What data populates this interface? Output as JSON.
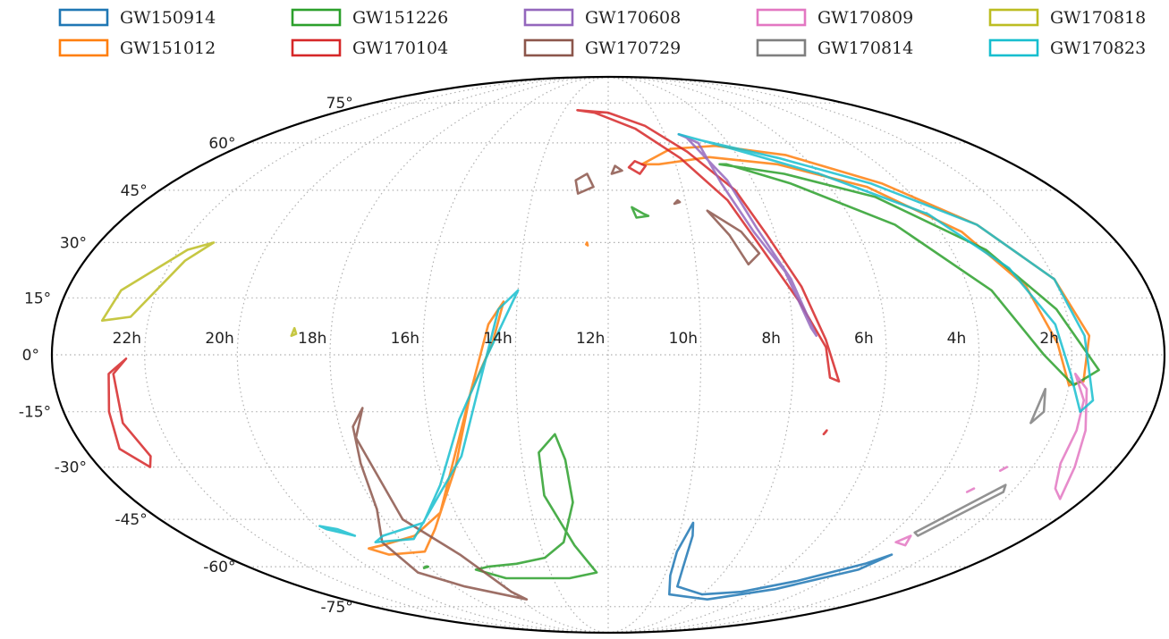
{
  "chart_data": {
    "type": "sky-map",
    "projection": "mollweide",
    "title": "",
    "ra_ticks": [
      "22h",
      "20h",
      "18h",
      "16h",
      "14h",
      "12h",
      "10h",
      "8h",
      "6h",
      "4h",
      "2h"
    ],
    "dec_ticks": [
      "-75°",
      "-60°",
      "-45°",
      "-30°",
      "-15°",
      "0°",
      "15°",
      "30°",
      "45°",
      "60°",
      "75°"
    ],
    "grid": true,
    "legend": {
      "placement": "top",
      "columns": 5,
      "entries": [
        {
          "name": "GW150914",
          "color": "#1f77b4"
        },
        {
          "name": "GW151012",
          "color": "#ff7f0e"
        },
        {
          "name": "GW151226",
          "color": "#2ca02c"
        },
        {
          "name": "GW170104",
          "color": "#d62728"
        },
        {
          "name": "GW170608",
          "color": "#9467bd"
        },
        {
          "name": "GW170729",
          "color": "#8c564b"
        },
        {
          "name": "GW170809",
          "color": "#e377c2"
        },
        {
          "name": "GW170814",
          "color": "#7f7f7f"
        },
        {
          "name": "GW170818",
          "color": "#bcbd22"
        },
        {
          "name": "GW170823",
          "color": "#17becf"
        }
      ]
    },
    "series": [
      {
        "name": "GW150914",
        "color": "#1f77b4",
        "regions": [
          [
            [
              9.7,
              -46
            ],
            [
              9.9,
              -55
            ],
            [
              9.8,
              -63
            ],
            [
              9.4,
              -70
            ],
            [
              7.5,
              -72
            ],
            [
              5.3,
              -68
            ],
            [
              3.5,
              -61
            ],
            [
              3.2,
              -56
            ],
            [
              3.6,
              -59
            ],
            [
              5.0,
              -65
            ],
            [
              6.5,
              -69
            ],
            [
              8.0,
              -70
            ],
            [
              9.3,
              -67
            ],
            [
              9.5,
              -60
            ],
            [
              9.6,
              -50
            ],
            [
              9.7,
              -46
            ]
          ]
        ]
      },
      {
        "name": "GW151012",
        "color": "#ff7f0e",
        "regions": [
          [
            [
              11.0,
              53
            ],
            [
              10.0,
              58
            ],
            [
              8.5,
              59
            ],
            [
              6.5,
              56
            ],
            [
              4.5,
              47
            ],
            [
              3.0,
              35
            ],
            [
              2.0,
              20
            ],
            [
              1.6,
              5
            ],
            [
              1.7,
              -7
            ],
            [
              2.0,
              -8
            ],
            [
              2.3,
              3
            ],
            [
              2.7,
              18
            ],
            [
              3.5,
              33
            ],
            [
              5.0,
              46
            ],
            [
              7.0,
              53
            ],
            [
              8.9,
              55.3
            ],
            [
              10.5,
              53
            ],
            [
              11.0,
              53
            ]
          ],
          [
            [
              14.3,
              14
            ],
            [
              14.6,
              8
            ],
            [
              15.0,
              -10
            ],
            [
              15.6,
              -30
            ],
            [
              16.8,
              -48
            ],
            [
              17.6,
              -55
            ],
            [
              18.8,
              -56
            ],
            [
              19.2,
              -54
            ],
            [
              18.7,
              -53
            ],
            [
              17.5,
              -50
            ],
            [
              16.4,
              -43
            ],
            [
              15.6,
              -28
            ],
            [
              15.0,
              -10
            ],
            [
              14.5,
              3
            ],
            [
              14.3,
              14
            ]
          ],
          [
            [
              12.5,
              30
            ],
            [
              12.52,
              29.5
            ],
            [
              12.48,
              29.2
            ],
            [
              12.5,
              30
            ]
          ]
        ]
      },
      {
        "name": "GW151226",
        "color": "#2ca02c",
        "regions": [
          [
            [
              13.2,
              -21
            ],
            [
              13.6,
              -26
            ],
            [
              13.6,
              -38
            ],
            [
              13.0,
              -53
            ],
            [
              12.4,
              -62
            ],
            [
              13.4,
              -64
            ],
            [
              14.5,
              -64
            ],
            [
              15.7,
              -64
            ],
            [
              16.5,
              -61
            ],
            [
              16.0,
              -60
            ],
            [
              15.0,
              -59
            ],
            [
              14.0,
              -57
            ],
            [
              13.3,
              -52
            ],
            [
              12.9,
              -40
            ],
            [
              13.0,
              -28
            ],
            [
              13.2,
              -21
            ]
          ],
          [
            [
              8.7,
              53
            ],
            [
              7.0,
              50
            ],
            [
              5.0,
              43
            ],
            [
              3.2,
              28
            ],
            [
              2.2,
              12
            ],
            [
              1.4,
              -4
            ],
            [
              1.9,
              -8
            ],
            [
              2.6,
              0
            ],
            [
              3.5,
              17
            ],
            [
              5.0,
              35
            ],
            [
              7.0,
              47
            ],
            [
              8.5,
              53
            ],
            [
              8.7,
              53
            ]
          ],
          [
            [
              11.1,
              38
            ],
            [
              11.4,
              40
            ],
            [
              11.3,
              37
            ],
            [
              11.0,
              37.5
            ],
            [
              11.1,
              38
            ]
          ],
          [
            [
              18.0,
              -60
            ],
            [
              18.2,
              -60.5
            ],
            [
              18.1,
              -60
            ],
            [
              18.0,
              -60
            ]
          ]
        ]
      },
      {
        "name": "GW170104",
        "color": "#d62728",
        "regions": [
          [
            [
              13.4,
              72
            ],
            [
              12.0,
              71
            ],
            [
              10.6,
              66
            ],
            [
              9.5,
              57
            ],
            [
              8.6,
              45
            ],
            [
              8.2,
              32
            ],
            [
              7.7,
              18
            ],
            [
              7.3,
              4
            ],
            [
              7.0,
              -7
            ],
            [
              7.2,
              -6
            ],
            [
              7.3,
              2
            ],
            [
              7.8,
              14
            ],
            [
              8.4,
              28
            ],
            [
              8.9,
              42
            ],
            [
              9.8,
              55
            ],
            [
              11.0,
              65
            ],
            [
              12.6,
              71
            ],
            [
              13.4,
              72
            ]
          ],
          [
            [
              11.2,
              54
            ],
            [
              11.4,
              52
            ],
            [
              11.1,
              50
            ],
            [
              10.9,
              52.5
            ],
            [
              11.2,
              54
            ]
          ],
          [
            [
              22.4,
              -1
            ],
            [
              22.7,
              -5
            ],
            [
              22.8,
              -18
            ],
            [
              22.6,
              -27
            ],
            [
              22.8,
              -30
            ],
            [
              23.2,
              -25
            ],
            [
              23.0,
              -15
            ],
            [
              22.8,
              -5
            ],
            [
              22.4,
              -1
            ]
          ],
          [
            [
              7.1,
              -20
            ],
            [
              7.15,
              -21
            ],
            [
              7.12,
              -20.5
            ],
            [
              7.1,
              -20
            ]
          ]
        ]
      },
      {
        "name": "GW170608",
        "color": "#9467bd",
        "regions": [
          [
            [
              9.5,
              63
            ],
            [
              9.0,
              60
            ],
            [
              8.9,
              47
            ],
            [
              8.5,
              33
            ],
            [
              8.0,
              22
            ],
            [
              7.6,
              7
            ],
            [
              7.5,
              5
            ],
            [
              7.9,
              20
            ],
            [
              8.4,
              34
            ],
            [
              8.7,
              48
            ],
            [
              9.3,
              62
            ],
            [
              9.5,
              63
            ]
          ]
        ]
      },
      {
        "name": "GW170729",
        "color": "#8c564b",
        "regions": [
          [
            [
              17.4,
              -14
            ],
            [
              17.7,
              -22
            ],
            [
              17.5,
              -45
            ],
            [
              16.6,
              -56
            ],
            [
              16.0,
              -69
            ],
            [
              15.7,
              -72
            ],
            [
              17.6,
              -67
            ],
            [
              18.6,
              -62
            ],
            [
              18.6,
              -52
            ],
            [
              18.0,
              -42
            ],
            [
              17.8,
              -29
            ],
            [
              17.7,
              -19
            ],
            [
              17.4,
              -14
            ]
          ],
          [
            [
              12.6,
              50
            ],
            [
              12.9,
              48
            ],
            [
              12.8,
              44
            ],
            [
              12.4,
              46
            ],
            [
              12.6,
              50
            ]
          ],
          [
            [
              9.5,
              39
            ],
            [
              9.1,
              32
            ],
            [
              8.8,
              24
            ],
            [
              8.5,
              27
            ],
            [
              8.8,
              33
            ],
            [
              9.5,
              39
            ]
          ],
          [
            [
              11.6,
              51
            ],
            [
              11.8,
              52.5
            ],
            [
              11.9,
              50
            ],
            [
              11.6,
              51
            ]
          ],
          [
            [
              10.2,
              42
            ],
            [
              10.3,
              41
            ],
            [
              10.15,
              41.5
            ],
            [
              10.2,
              42
            ]
          ]
        ]
      },
      {
        "name": "GW170809",
        "color": "#e377c2",
        "regions": [
          [
            [
              1.9,
              -5
            ],
            [
              1.6,
              -9
            ],
            [
              1.3,
              -20
            ],
            [
              1.0,
              -30
            ],
            [
              0.6,
              -39
            ],
            [
              1.0,
              -36
            ],
            [
              1.4,
              -29
            ],
            [
              1.5,
              -20
            ],
            [
              1.6,
              -12
            ],
            [
              1.9,
              -5
            ]
          ],
          [
            [
              3.4,
              -50
            ],
            [
              3.6,
              -52
            ],
            [
              3.2,
              -53
            ],
            [
              3.4,
              -50
            ]
          ],
          [
            [
              2.6,
              -30
            ],
            [
              2.7,
              -31
            ],
            [
              2.6,
              -30
            ]
          ],
          [
            [
              3.0,
              -36
            ],
            [
              3.1,
              -37
            ],
            [
              3.0,
              -36
            ]
          ]
        ]
      },
      {
        "name": "GW170814",
        "color": "#7f7f7f",
        "regions": [
          [
            [
              2.3,
              -35
            ],
            [
              3.4,
              -49
            ],
            [
              3.2,
              -50
            ],
            [
              2.2,
              -37
            ],
            [
              2.3,
              -35
            ]
          ],
          [
            [
              2.5,
              -9
            ],
            [
              2.6,
              -18
            ],
            [
              2.4,
              -15
            ],
            [
              2.5,
              -9
            ]
          ]
        ]
      },
      {
        "name": "GW170818",
        "color": "#bcbd22",
        "regions": [
          [
            [
              21.3,
              30
            ],
            [
              21.7,
              25
            ],
            [
              22.4,
              10
            ],
            [
              23.0,
              9
            ],
            [
              22.8,
              17
            ],
            [
              21.8,
              28
            ],
            [
              21.3,
              30
            ]
          ],
          [
            [
              18.8,
              7
            ],
            [
              18.85,
              5
            ],
            [
              18.75,
              5.5
            ],
            [
              18.8,
              7
            ]
          ]
        ]
      },
      {
        "name": "GW170823",
        "color": "#17becf",
        "regions": [
          [
            [
              9.5,
              63
            ],
            [
              8.9,
              61
            ],
            [
              6.8,
              55
            ],
            [
              4.8,
              47
            ],
            [
              3.0,
              35
            ],
            [
              2.0,
              20
            ],
            [
              1.7,
              5
            ],
            [
              1.4,
              -12
            ],
            [
              1.6,
              -15
            ],
            [
              2.0,
              -5
            ],
            [
              2.3,
              8
            ],
            [
              2.9,
              23
            ],
            [
              4.0,
              38
            ],
            [
              6.0,
              50
            ],
            [
              8.0,
              58
            ],
            [
              9.5,
              63
            ]
          ],
          [
            [
              14.0,
              17
            ],
            [
              14.4,
              12
            ],
            [
              14.8,
              -8
            ],
            [
              15.4,
              -27
            ],
            [
              16.7,
              -43
            ],
            [
              17.6,
              -51
            ],
            [
              18.8,
              -52
            ],
            [
              18.4,
              -50
            ],
            [
              17.0,
              -46
            ],
            [
              16.1,
              -35
            ],
            [
              15.3,
              -17
            ],
            [
              14.6,
              0
            ],
            [
              14.0,
              17
            ]
          ],
          [
            [
              19.9,
              -47
            ],
            [
              19.5,
              -48
            ],
            [
              19.2,
              -50
            ],
            [
              19.8,
              -48
            ],
            [
              19.9,
              -47
            ]
          ]
        ]
      }
    ]
  }
}
